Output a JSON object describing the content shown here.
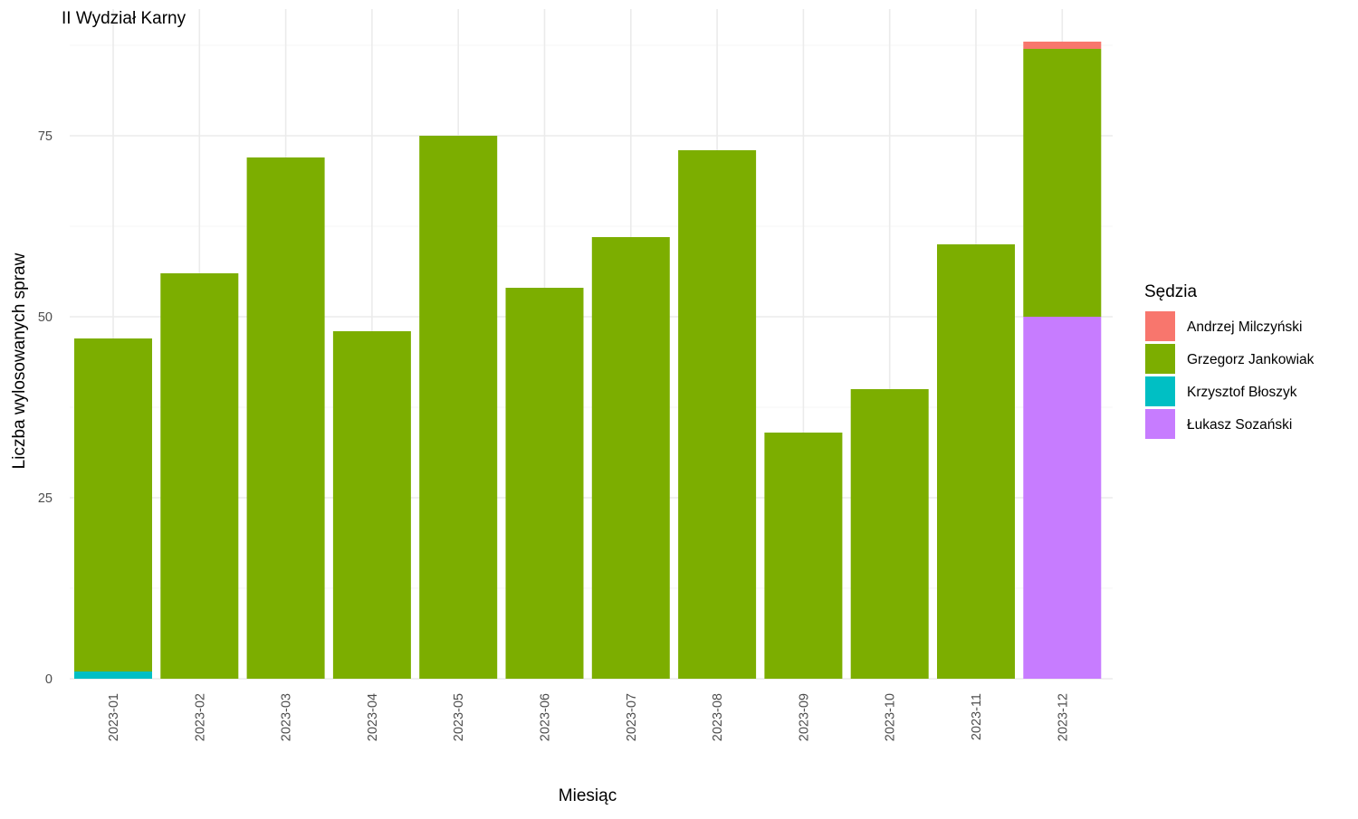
{
  "chart_data": {
    "type": "bar",
    "stacked": true,
    "title": "II Wydział Karny",
    "xlabel": "Miesiąc",
    "ylabel": "Liczba wylosowanych spraw",
    "categories": [
      "2023-01",
      "2023-02",
      "2023-03",
      "2023-04",
      "2023-05",
      "2023-06",
      "2023-07",
      "2023-08",
      "2023-09",
      "2023-10",
      "2023-11",
      "2023-12"
    ],
    "ylim": [
      0,
      89
    ],
    "yticks": [
      0,
      25,
      50,
      75
    ],
    "grid": true,
    "legend": {
      "title": "Sędzia",
      "placement": "right"
    },
    "series": [
      {
        "name": "Krzysztof Błoszyk",
        "color": "#00BFC4",
        "values": [
          1,
          0,
          0,
          0,
          0,
          0,
          0,
          0,
          0,
          0,
          0,
          0
        ]
      },
      {
        "name": "Łukasz Sozański",
        "color": "#C77CFF",
        "values": [
          0,
          0,
          0,
          0,
          0,
          0,
          0,
          0,
          0,
          0,
          0,
          50
        ]
      },
      {
        "name": "Grzegorz Jankowiak",
        "color": "#7CAE00",
        "values": [
          46,
          56,
          72,
          48,
          75,
          54,
          61,
          73,
          34,
          40,
          60,
          37
        ]
      },
      {
        "name": "Andrzej Milczyński",
        "color": "#F8766D",
        "values": [
          0,
          0,
          0,
          0,
          0,
          0,
          0,
          0,
          0,
          0,
          0,
          1
        ]
      }
    ],
    "legend_order": [
      "Andrzej Milczyński",
      "Grzegorz Jankowiak",
      "Krzysztof Błoszyk",
      "Łukasz Sozański"
    ]
  }
}
